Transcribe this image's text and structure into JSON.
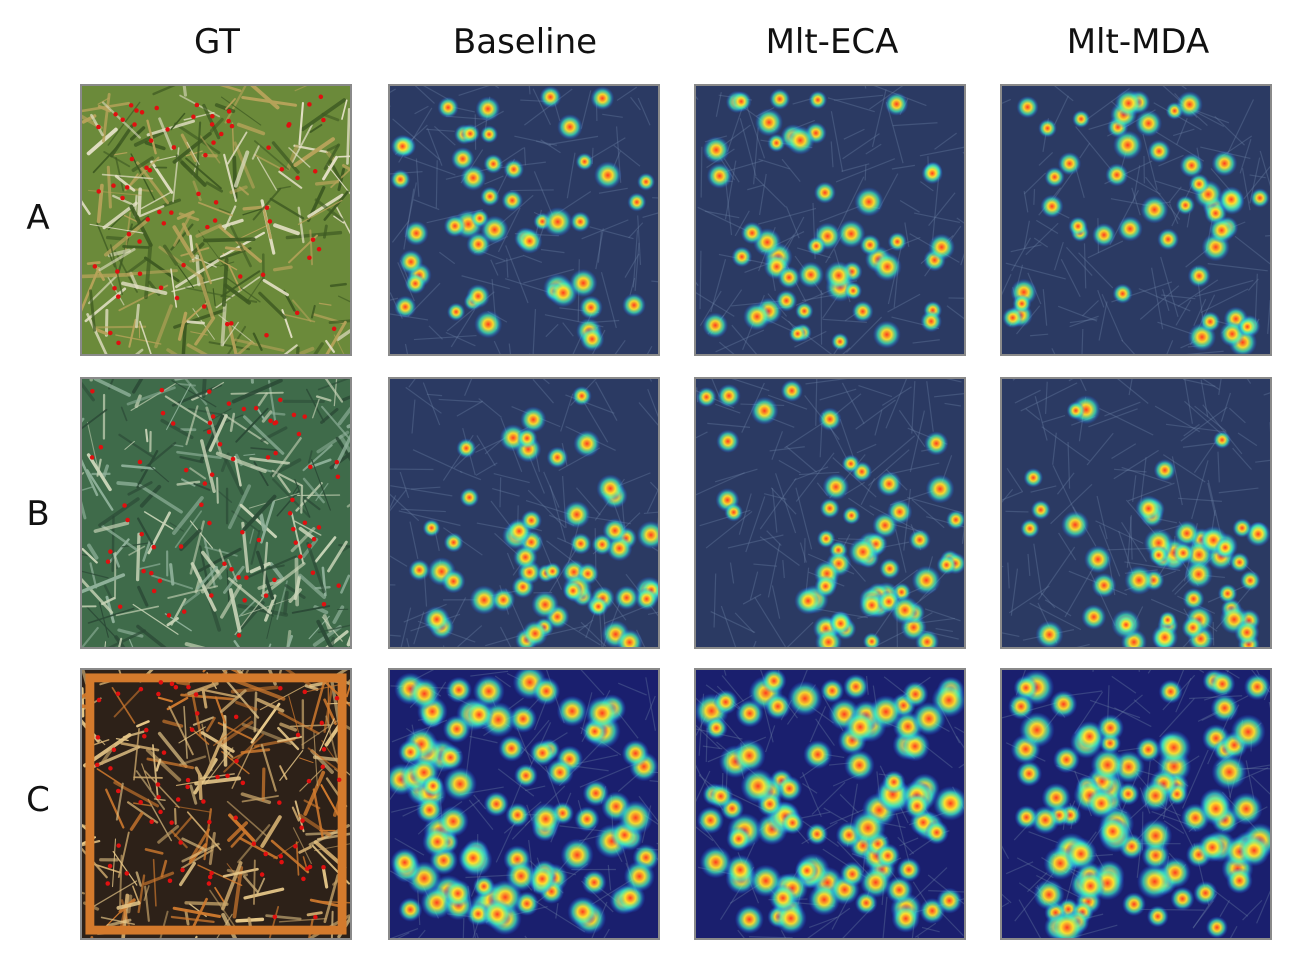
{
  "columns": [
    "GT",
    "Baseline",
    "Mlt-ECA",
    "Mlt-MDA"
  ],
  "rows": [
    "A",
    "B",
    "C"
  ],
  "panels": [
    {
      "row": "A",
      "col": "GT",
      "kind": "photo",
      "scene": "dense green wheat ears, top view",
      "palette": [
        "#6b8a3a",
        "#b7a35a",
        "#e6e2c8",
        "#3e5a22"
      ]
    },
    {
      "row": "A",
      "col": "Baseline",
      "kind": "heatmap",
      "scene": "wheat density heatmap overlay"
    },
    {
      "row": "A",
      "col": "Mlt-ECA",
      "kind": "heatmap",
      "scene": "wheat density heatmap overlay"
    },
    {
      "row": "A",
      "col": "Mlt-MDA",
      "kind": "heatmap",
      "scene": "wheat density heatmap overlay"
    },
    {
      "row": "B",
      "col": "GT",
      "kind": "photo",
      "scene": "green wheat leaves and ears, oblique view",
      "palette": [
        "#3f6b4a",
        "#8fb19a",
        "#c7d3b6",
        "#2c4b37"
      ]
    },
    {
      "row": "B",
      "col": "Baseline",
      "kind": "heatmap",
      "scene": "wheat density heatmap overlay"
    },
    {
      "row": "B",
      "col": "Mlt-ECA",
      "kind": "heatmap",
      "scene": "wheat density heatmap overlay"
    },
    {
      "row": "B",
      "col": "Mlt-MDA",
      "kind": "heatmap",
      "scene": "wheat density heatmap overlay"
    },
    {
      "row": "C",
      "col": "GT",
      "kind": "photo",
      "scene": "mature wheat ears inside orange sampling frame",
      "palette": [
        "#2d2118",
        "#c9a66b",
        "#e8c98a",
        "#d07a2e"
      ]
    },
    {
      "row": "C",
      "col": "Baseline",
      "kind": "heatmap",
      "scene": "wheat density heatmap overlay"
    },
    {
      "row": "C",
      "col": "Mlt-ECA",
      "kind": "heatmap",
      "scene": "wheat density heatmap overlay"
    },
    {
      "row": "C",
      "col": "Mlt-MDA",
      "kind": "heatmap",
      "scene": "wheat density heatmap overlay"
    }
  ]
}
